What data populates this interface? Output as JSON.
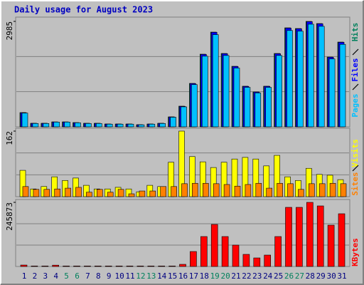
{
  "title": "Daily usage for August 2023",
  "chart_data": [
    {
      "type": "bar",
      "ylim": [
        0,
        2985
      ],
      "yticks": [
        2985
      ],
      "series": [
        {
          "name": "Hits",
          "color": "#00805c",
          "values": [
            403,
            100,
            100,
            140,
            140,
            120,
            100,
            100,
            80,
            80,
            80,
            60,
            80,
            100,
            282,
            585,
            1230,
            2057,
            2682,
            2077,
            1714,
            1150,
            988,
            1150,
            2077,
            2803,
            2783,
            2985,
            2924,
            1976,
            2400
          ]
        },
        {
          "name": "Files",
          "color": "#0000ff",
          "values": [
            400,
            100,
            100,
            138,
            138,
            118,
            100,
            100,
            80,
            80,
            80,
            60,
            80,
            100,
            280,
            580,
            1225,
            2050,
            2675,
            2070,
            1708,
            1145,
            984,
            1146,
            2070,
            2795,
            2776,
            2978,
            2916,
            1970,
            2392
          ]
        },
        {
          "name": "Pages",
          "color": "#00c0ff",
          "values": [
            390,
            95,
            95,
            135,
            135,
            115,
            95,
            95,
            76,
            76,
            76,
            57,
            76,
            95,
            272,
            566,
            1196,
            2000,
            2610,
            2020,
            1665,
            1118,
            960,
            1118,
            2020,
            2727,
            2708,
            2905,
            2846,
            1922,
            2335
          ]
        }
      ]
    },
    {
      "type": "bar",
      "ylim": [
        0,
        162
      ],
      "yticks": [
        162
      ],
      "series": [
        {
          "name": "Visits",
          "color": "#ffff00",
          "values": [
            65,
            19,
            25,
            49,
            40,
            46,
            28,
            19,
            19,
            23,
            19,
            12,
            28,
            25,
            85,
            162,
            99,
            86,
            72,
            85,
            93,
            97,
            93,
            76,
            102,
            49,
            40,
            70,
            55,
            53,
            42
          ]
        },
        {
          "name": "Sites",
          "color": "#ff8000",
          "values": [
            25,
            18,
            18,
            19,
            21,
            23,
            11,
            18,
            11,
            18,
            7,
            14,
            14,
            25,
            25,
            32,
            33,
            33,
            32,
            30,
            26,
            30,
            33,
            21,
            33,
            32,
            18,
            32,
            32,
            33,
            32
          ]
        }
      ]
    },
    {
      "type": "bar",
      "ylim": [
        0,
        245873
      ],
      "yticks": [
        245873
      ],
      "categories": [
        "1",
        "2",
        "3",
        "4",
        "5",
        "6",
        "7",
        "8",
        "9",
        "10",
        "11",
        "12",
        "13",
        "14",
        "15",
        "16",
        "17",
        "18",
        "19",
        "20",
        "21",
        "22",
        "23",
        "24",
        "25",
        "26",
        "27",
        "28",
        "29",
        "30",
        "31"
      ],
      "x_label_colors": [
        "#000080",
        "#000080",
        "#000080",
        "#000080",
        "#00805c",
        "#00805c",
        "#000080",
        "#000080",
        "#000080",
        "#000080",
        "#000080",
        "#00805c",
        "#00805c",
        "#000080",
        "#000080",
        "#000080",
        "#000080",
        "#000080",
        "#00805c",
        "#00805c",
        "#000080",
        "#000080",
        "#000080",
        "#000080",
        "#000080",
        "#00805c",
        "#00805c",
        "#000080",
        "#000080",
        "#000080",
        "#000080"
      ],
      "series": [
        {
          "name": "KBytes",
          "color": "#ff0000",
          "values": [
            5464,
            2000,
            2000,
            5000,
            2000,
            2000,
            2000,
            2000,
            2000,
            2000,
            2000,
            2000,
            2000,
            2000,
            2000,
            8195,
            57371,
            114741,
            161184,
            114741,
            81958,
            46442,
            32783,
            43711,
            114741,
            226744,
            226744,
            245873,
            232213,
            158452,
            202163
          ]
        }
      ]
    }
  ]
}
